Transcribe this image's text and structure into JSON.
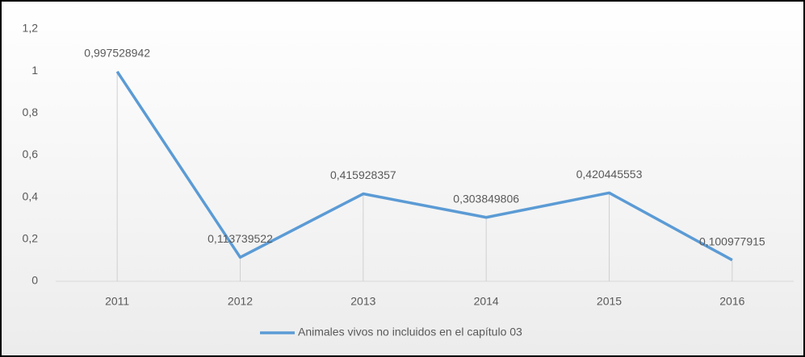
{
  "chart_data": {
    "type": "line",
    "categories": [
      "2011",
      "2012",
      "2013",
      "2014",
      "2015",
      "2016"
    ],
    "series": [
      {
        "name": "Animales vivos no incluidos en el capítulo 03",
        "color": "#5b9bd5",
        "values": [
          0.997528942,
          0.113739522,
          0.415928357,
          0.303849806,
          0.420445553,
          0.100977915
        ],
        "value_labels": [
          "0,997528942",
          "0,113739522",
          "0,415928357",
          "0,303849806",
          "0,420445553",
          "0,100977915"
        ]
      }
    ],
    "ylim": [
      0,
      1.2
    ],
    "yticks": [
      0,
      {
        "value": 0.2,
        "label": "0,2"
      },
      {
        "value": 0.4,
        "label": "0,4"
      },
      {
        "value": 0.6,
        "label": "0,6"
      },
      {
        "value": 0.8,
        "label": "0,8"
      },
      1,
      {
        "value": 1.2,
        "label": "1,2"
      }
    ],
    "drop_lines": true,
    "legend": "bottom"
  }
}
